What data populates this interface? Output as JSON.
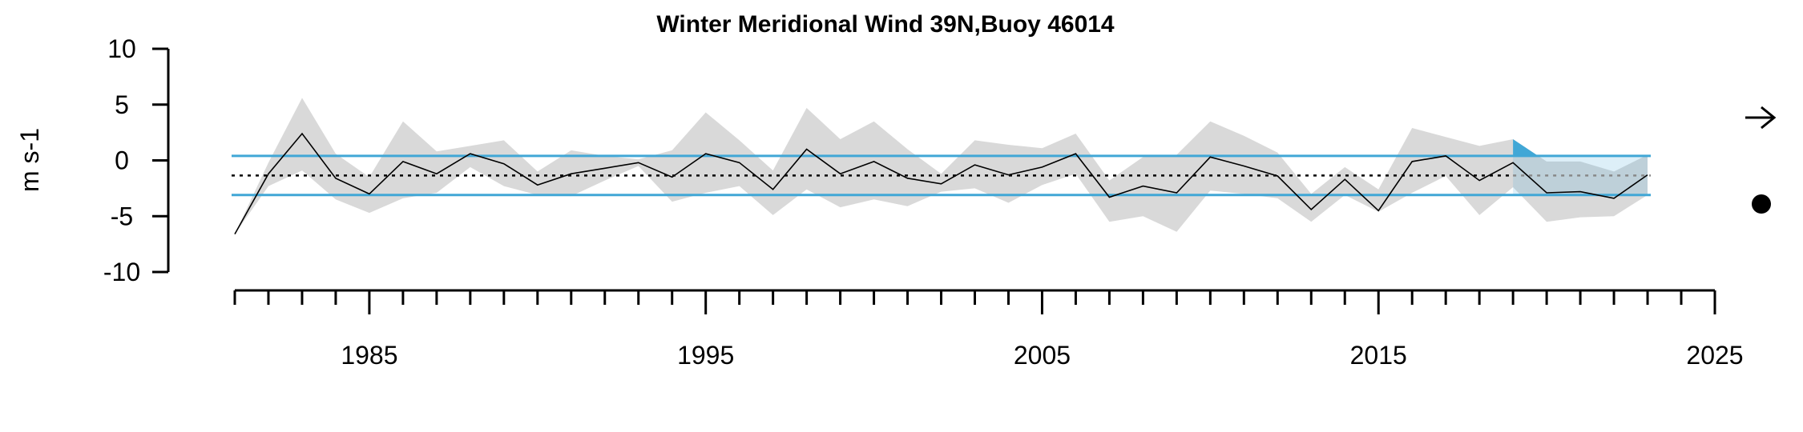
{
  "chart_data": {
    "type": "line",
    "title": "Winter Meridional Wind 39N,Buoy 46014",
    "ylabel": "m s-1",
    "xlabel": "",
    "ylim": [
      -10,
      10
    ],
    "xlim": [
      1981,
      2025
    ],
    "y_ticks": [
      "10",
      "5",
      "0",
      "-5",
      "-10"
    ],
    "y_tick_values": [
      10,
      5,
      0,
      -5,
      -10
    ],
    "x_ticks": [
      "1985",
      "1995",
      "2005",
      "2015",
      "2025"
    ],
    "x_tick_values": [
      1985,
      1995,
      2005,
      2015,
      2025
    ],
    "x_minor_tick_step": 1,
    "grid": false,
    "series": [
      {
        "values": [
          [
            1981,
            -6.6
          ],
          [
            1982,
            -1.2
          ],
          [
            1983,
            2.4
          ],
          [
            1984,
            -1.6
          ],
          [
            1985,
            -3.0
          ],
          [
            1986,
            -0.1
          ],
          [
            1987,
            -1.2
          ],
          [
            1988,
            0.6
          ],
          [
            1989,
            -0.3
          ],
          [
            1990,
            -2.2
          ],
          [
            1991,
            -1.2
          ],
          [
            1992,
            -0.7
          ],
          [
            1993,
            -0.2
          ],
          [
            1994,
            -1.5
          ],
          [
            1995,
            0.6
          ],
          [
            1996,
            -0.2
          ],
          [
            1997,
            -2.6
          ],
          [
            1998,
            1.0
          ],
          [
            1999,
            -1.2
          ],
          [
            2000,
            -0.1
          ],
          [
            2001,
            -1.6
          ],
          [
            2002,
            -2.1
          ],
          [
            2003,
            -0.4
          ],
          [
            2004,
            -1.3
          ],
          [
            2005,
            -0.6
          ],
          [
            2006,
            0.6
          ],
          [
            2007,
            -3.3
          ],
          [
            2008,
            -2.3
          ],
          [
            2009,
            -2.9
          ],
          [
            2010,
            0.3
          ],
          [
            2011,
            -0.5
          ],
          [
            2012,
            -1.4
          ],
          [
            2013,
            -4.4
          ],
          [
            2014,
            -1.7
          ],
          [
            2015,
            -4.5
          ],
          [
            2016,
            -0.1
          ],
          [
            2017,
            0.4
          ],
          [
            2018,
            -1.8
          ],
          [
            2019,
            -0.2
          ],
          [
            2020,
            -2.9
          ],
          [
            2021,
            -2.8
          ],
          [
            2022,
            -3.4
          ],
          [
            2023,
            -1.3
          ]
        ],
        "color": "#000000"
      }
    ],
    "uncertainty_band": {
      "upper": [
        [
          1981,
          -6.6
        ],
        [
          1982,
          -0.2
        ],
        [
          1983,
          5.6
        ],
        [
          1984,
          0.6
        ],
        [
          1985,
          -1.5
        ],
        [
          1986,
          3.5
        ],
        [
          1987,
          0.8
        ],
        [
          1988,
          1.3
        ],
        [
          1989,
          1.8
        ],
        [
          1990,
          -1.0
        ],
        [
          1991,
          0.9
        ],
        [
          1992,
          0.4
        ],
        [
          1993,
          0.1
        ],
        [
          1994,
          0.9
        ],
        [
          1995,
          4.3
        ],
        [
          1996,
          1.8
        ],
        [
          1997,
          -0.9
        ],
        [
          1998,
          4.7
        ],
        [
          1999,
          1.9
        ],
        [
          2000,
          3.5
        ],
        [
          2001,
          1.0
        ],
        [
          2002,
          -1.2
        ],
        [
          2003,
          1.8
        ],
        [
          2004,
          1.4
        ],
        [
          2005,
          1.1
        ],
        [
          2006,
          2.4
        ],
        [
          2007,
          -1.8
        ],
        [
          2008,
          0.3
        ],
        [
          2009,
          0.5
        ],
        [
          2010,
          3.5
        ],
        [
          2011,
          2.2
        ],
        [
          2012,
          0.7
        ],
        [
          2013,
          -3.0
        ],
        [
          2014,
          -0.6
        ],
        [
          2015,
          -2.6
        ],
        [
          2016,
          2.9
        ],
        [
          2017,
          2.1
        ],
        [
          2018,
          1.3
        ],
        [
          2019,
          1.9
        ],
        [
          2020,
          -0.1
        ],
        [
          2021,
          -0.1
        ],
        [
          2022,
          -1.0
        ],
        [
          2023,
          0.5
        ]
      ],
      "lower": [
        [
          1981,
          -6.6
        ],
        [
          1982,
          -2.3
        ],
        [
          1983,
          -0.9
        ],
        [
          1984,
          -3.5
        ],
        [
          1985,
          -4.7
        ],
        [
          1986,
          -3.4
        ],
        [
          1987,
          -2.9
        ],
        [
          1988,
          -0.6
        ],
        [
          1989,
          -2.3
        ],
        [
          1990,
          -3.1
        ],
        [
          1991,
          -3.2
        ],
        [
          1992,
          -1.8
        ],
        [
          1993,
          -0.5
        ],
        [
          1994,
          -3.7
        ],
        [
          1995,
          -2.9
        ],
        [
          1996,
          -2.3
        ],
        [
          1997,
          -4.9
        ],
        [
          1998,
          -2.6
        ],
        [
          1999,
          -4.2
        ],
        [
          2000,
          -3.5
        ],
        [
          2001,
          -4.1
        ],
        [
          2002,
          -2.8
        ],
        [
          2003,
          -2.5
        ],
        [
          2004,
          -3.8
        ],
        [
          2005,
          -2.2
        ],
        [
          2006,
          -1.2
        ],
        [
          2007,
          -5.5
        ],
        [
          2008,
          -5.0
        ],
        [
          2009,
          -6.4
        ],
        [
          2010,
          -2.7
        ],
        [
          2011,
          -3.0
        ],
        [
          2012,
          -3.4
        ],
        [
          2013,
          -5.5
        ],
        [
          2014,
          -3.1
        ],
        [
          2015,
          -4.6
        ],
        [
          2016,
          -2.9
        ],
        [
          2017,
          -1.4
        ],
        [
          2018,
          -4.9
        ],
        [
          2019,
          -2.4
        ],
        [
          2020,
          -5.5
        ],
        [
          2021,
          -5.1
        ],
        [
          2022,
          -5.0
        ],
        [
          2023,
          -3.1
        ]
      ],
      "color": "#d9d9d9"
    },
    "reference_lines": {
      "upper_sd": 0.4,
      "lower_sd": -3.1,
      "mean": -1.35,
      "color": "#41a7d6"
    },
    "recent_period_highlight": {
      "x_start": 2019,
      "x_end": 2023,
      "color": "#41a7d6"
    },
    "trend_indicator": "right-arrow-icon",
    "mean_indicator": "filled-circle-icon"
  }
}
